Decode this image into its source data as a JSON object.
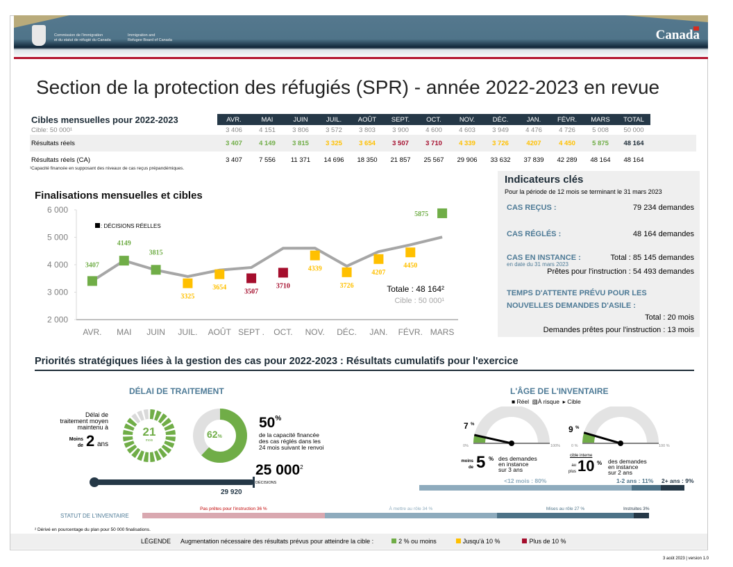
{
  "banner": {
    "org_fr": [
      "Commission de l'immigration",
      "et du statut de réfugié du Canada"
    ],
    "org_en": [
      "Immigration and",
      "Refugee Board of Canada"
    ],
    "wordmark": "Canada"
  },
  "title": "Section de la protection des réfugiés (SPR) - année 2022-2023 en revue",
  "targets_table": {
    "heading": "Cibles mensuelles pour 2022-2023",
    "columns": [
      "AVR.",
      "MAI",
      "JUIN",
      "JUIL.",
      "AOÛT",
      "SEPT.",
      "OCT.",
      "NOV.",
      "DÉC.",
      "JAN.",
      "FÉVR.",
      "MARS",
      "TOTAL"
    ],
    "rows": [
      {
        "label": "Cible: 50 000¹",
        "values": [
          "3 406",
          "4 151",
          "3 806",
          "3 572",
          "3 803",
          "3 900",
          "4 600",
          "4 603",
          "3 949",
          "4 476",
          "4 726",
          "5 008",
          "50 000"
        ]
      },
      {
        "label": "Résultats réels",
        "values": [
          "3 407",
          "4 149",
          "3 815",
          "3 325",
          "3 654",
          "3 507",
          "3 710",
          "4 339",
          "3 726",
          "4207",
          "4 450",
          "5 875",
          "48 164"
        ],
        "status": [
          "green",
          "green",
          "green",
          "yellow",
          "yellow",
          "red",
          "red",
          "yellow",
          "yellow",
          "yellow",
          "yellow",
          "green",
          "total"
        ]
      },
      {
        "label": "Résultats réels (CA)",
        "values": [
          "3 407",
          "7 556",
          "11 371",
          "14 696",
          "18 350",
          "21 857",
          "25 567",
          "29 906",
          "33 632",
          "37 839",
          "42 289",
          "48 164",
          "48 164"
        ]
      }
    ],
    "footnote": "¹Capacité financée en supposant des niveaux de cas reçus prépandémiques."
  },
  "colors": {
    "green": "#70ad47",
    "yellow": "#ffc000",
    "red": "#a50e2d",
    "total": "#1c2b36",
    "line": "#a6a6a6"
  },
  "chart_data": {
    "type": "line",
    "title": "Finalisations mensuelles et cibles",
    "categories": [
      "AVR.",
      "MAI",
      "JUIN",
      "JUIL.",
      "AOÛT",
      "SEPT .",
      "OCT.",
      "NOV.",
      "DÉC.",
      "JAN.",
      "FÉVR.",
      "MARS"
    ],
    "series": [
      {
        "name": "Cible",
        "type": "line",
        "values": [
          3406,
          4151,
          3806,
          3572,
          3803,
          3900,
          4600,
          4603,
          3949,
          4476,
          4726,
          5008
        ]
      },
      {
        "name": "Décisions réelles",
        "type": "scatter",
        "values": [
          3407,
          4149,
          3815,
          3325,
          3654,
          3507,
          3710,
          4339,
          3726,
          4207,
          4450,
          5875
        ],
        "labels": [
          "3407",
          "4149",
          "3815",
          "3325",
          "3654",
          "3507",
          "3710",
          "4339",
          "3726",
          "4207",
          "4450",
          "5875"
        ],
        "status": [
          "green",
          "green",
          "green",
          "yellow",
          "yellow",
          "red",
          "red",
          "yellow",
          "yellow",
          "yellow",
          "yellow",
          "green"
        ]
      }
    ],
    "yticks": [
      "2 000",
      "3 000",
      "4 000",
      "5 000",
      "6 000"
    ],
    "ylim": [
      2000,
      6000
    ],
    "legend": ": DÉCISIONS RÉELLES",
    "legend_position": "top-left",
    "annotation_total": "Totale : 48 164²",
    "annotation_target": "Cible : 50 000¹"
  },
  "indicators": {
    "title": "Indicateurs clés",
    "period": "Pour la période de 12 mois se terminant le 31 mars 2023",
    "received_label": "CAS REÇUS :",
    "received_value": "79 234 demandes",
    "finalized_label": "CAS RÉGLÉS :",
    "finalized_value": "48 164 demandes",
    "pending_label": "CAS EN INSTANCE :",
    "pending_total": "Total : 85 145 demandes",
    "pending_asof": "en date du 31 mars 2023",
    "pending_ready": "Prêtes pour l'instruction : 54 493 demandes",
    "wait_label_1": "TEMPS D'ATTENTE PRÉVU POUR LES",
    "wait_label_2": "NOUVELLES DEMANDES D'ASILE :",
    "wait_total": "Total : 20 mois",
    "wait_ready": "Demandes prêtes pour l'instruction : 13 mois"
  },
  "strategic": {
    "title": "Priorités stratégiques liées à la gestion des cas pour 2022-2023 : Résultats cumulatifs pour l'exercice",
    "processing": {
      "heading": "DÉLAI DE TRAITEMENT",
      "desc": [
        "Délai de",
        "traitement moyen",
        "maintenu à"
      ],
      "moins": "Moins",
      "de": "de",
      "two": "2",
      "ans": "ans",
      "ring_value": "21",
      "ring_unit": "mois",
      "ring_filled": 21,
      "ring_total": 24,
      "donut_pct": 62,
      "donut_label": "62",
      "donut_unit": "%",
      "capacity_pct": "50",
      "capacity_unit": "%",
      "capacity_desc": [
        "de la capacité financée",
        "des cas réglés dans les",
        "24 mois suivant le renvoi"
      ],
      "decisions_target": "25 000",
      "decisions_sup": "2",
      "decisions_label": "DÉCISIONS",
      "decisions_actual": "29 920"
    },
    "inventory_age": {
      "heading": "L'ÂGE DE L'INVENTAIRE",
      "legend": [
        "Réel",
        "À risque",
        "Cible"
      ],
      "gauge1": {
        "value": "7",
        "unit": "%",
        "min": "0%",
        "max": "100%",
        "moins": "moins",
        "de": "de",
        "target": "5",
        "desc": [
          "des demandes",
          "en instance",
          "sur 3 ans"
        ]
      },
      "gauge2": {
        "value": "9",
        "unit": "%",
        "min": "0 %",
        "max": "100 %",
        "internal": "cible interne",
        "au": "au",
        "plus": "plus",
        "target": "10",
        "desc": [
          "des demandes",
          "en instance",
          "sur 2 ans"
        ]
      },
      "segments": [
        {
          "label": "<12 mois : 80%",
          "pct": 80
        },
        {
          "label": "1-2 ans : 11%",
          "pct": 11
        },
        {
          "label": "2+ ans : 9%",
          "pct": 9
        }
      ]
    },
    "inventory_status": {
      "label": "STATUT DE L'INVENTAIRE",
      "segments": [
        {
          "label": "Pas prêtes pour l'instruction 36 %",
          "pct": 36
        },
        {
          "label": "À mettre au rôle 34 %",
          "pct": 34
        },
        {
          "label": "Mises au rôle 27 %",
          "pct": 27
        },
        {
          "label": "Instruites 3%",
          "pct": 3
        }
      ]
    }
  },
  "footnote2": "² Dérivé en pourcentage du plan pour 50 000 finalisations.",
  "legend": {
    "title": "LÉGENDE",
    "desc": "Augmentation nécessaire des résultats prévus pour atteindre la cible :",
    "items": [
      "2 % ou moins",
      "Jusqu'à 10 %",
      "Plus de 10 %"
    ]
  },
  "version": "3 août 2023 | version 1.0"
}
